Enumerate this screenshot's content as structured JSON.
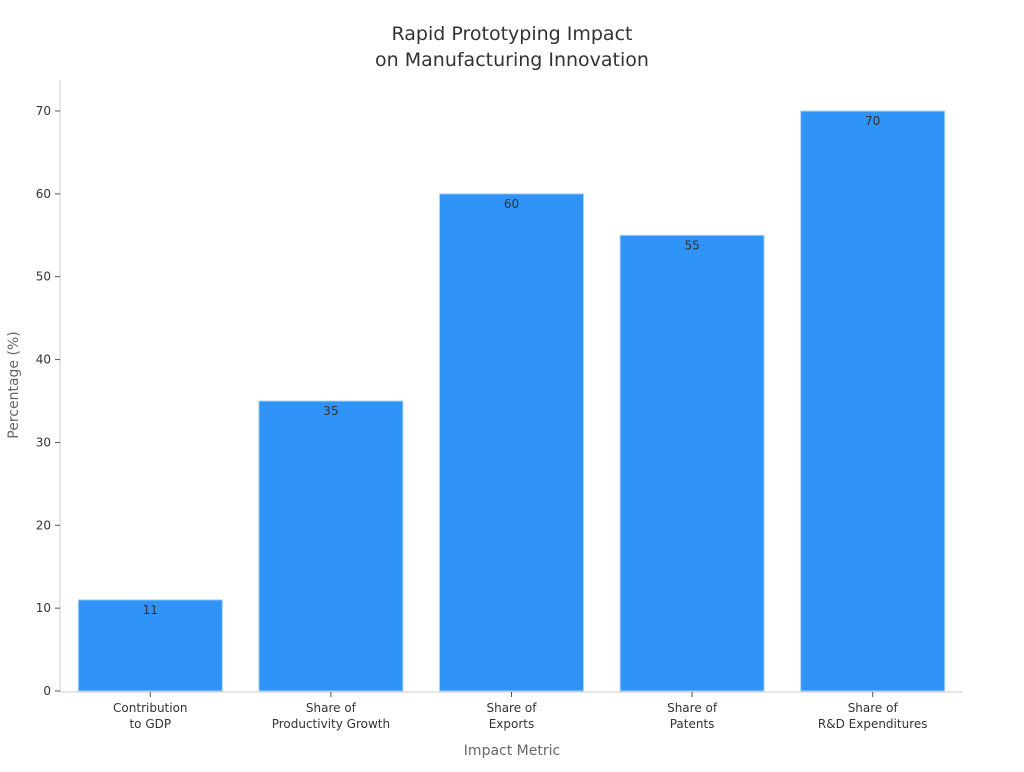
{
  "chart_data": {
    "type": "bar",
    "title_lines": [
      "Rapid Prototyping Impact",
      "on Manufacturing Innovation"
    ],
    "xlabel": "Impact Metric",
    "ylabel": "Percentage (%)",
    "categories": [
      [
        "Contribution",
        "to GDP"
      ],
      [
        "Share of",
        "Productivity Growth"
      ],
      [
        "Share of",
        "Exports"
      ],
      [
        "Share of",
        "Patents"
      ],
      [
        "Share of",
        "R&D Expenditures"
      ]
    ],
    "values": [
      11,
      35,
      60,
      55,
      70
    ],
    "data_labels": [
      "11",
      "35",
      "60",
      "55",
      "70"
    ],
    "ylim": [
      0,
      70
    ],
    "yticks": [
      0,
      10,
      20,
      30,
      40,
      50,
      60,
      70
    ],
    "grid": false,
    "legend": "none",
    "bar_color": "#2f93f7",
    "bar_edge_color": "#a9d4fb"
  }
}
